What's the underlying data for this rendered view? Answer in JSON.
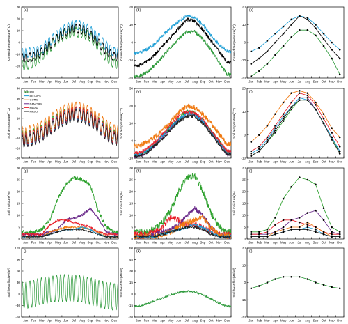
{
  "months": [
    "Jan",
    "Feb",
    "Mar",
    "Apr",
    "May",
    "Jun",
    "Jul",
    "Aug",
    "Sep",
    "Oct",
    "Nov",
    "Dec"
  ],
  "colors": {
    "MU": "#2ca02c",
    "BETOPS": "#1f9fd6",
    "GOMS": "#f07a12",
    "NAMORS": "#6a2a8a",
    "MAQU": "#e8202a",
    "MASO": "#222222",
    "black": "#000000",
    "green": "#2e9a3c",
    "blue": "#1f9fd6"
  },
  "chart_data": [
    {
      "id": "a",
      "panel_label": "(a)",
      "type": "line",
      "ylabel": "Ground temperature(°C)",
      "ylim": [
        -30,
        30
      ],
      "yticks": [
        -30,
        -20,
        -10,
        0,
        10,
        20,
        30
      ],
      "mode": "daily",
      "series": [
        {
          "key": "blue",
          "values": [
            -9,
            -8,
            -6,
            1,
            7,
            12,
            15,
            14,
            10,
            4,
            -3,
            -8
          ],
          "amp": 0.55
        },
        {
          "key": "green",
          "values": [
            -19,
            -17,
            -12,
            -4,
            3,
            7,
            9,
            8,
            5,
            -3,
            -12,
            -18
          ],
          "amp": 0.55
        },
        {
          "key": "black",
          "values": [
            -13,
            -12,
            -8,
            -2,
            4,
            9,
            12,
            11,
            7,
            0,
            -7,
            -12
          ],
          "amp": 0.5
        }
      ]
    },
    {
      "id": "b",
      "panel_label": "(b)",
      "type": "line",
      "ylabel": "Ground temperature(°C)",
      "ylim": [
        -20,
        20
      ],
      "yticks": [
        -20,
        -10,
        0,
        10,
        20
      ],
      "mode": "smooth",
      "series": [
        {
          "key": "blue",
          "values": [
            -6,
            -4,
            -1,
            4,
            8,
            12,
            15,
            14,
            10,
            4,
            -1,
            -5
          ],
          "noise": 1.0
        },
        {
          "key": "black",
          "values": [
            -13,
            -11,
            -7,
            -2,
            3,
            8,
            13,
            12,
            7,
            1,
            -5,
            -11
          ],
          "noise": 1.0
        },
        {
          "key": "green",
          "values": [
            -19,
            -17,
            -13,
            -8,
            -3,
            2,
            6,
            6,
            2,
            -4,
            -11,
            -18
          ],
          "noise": 1.0
        }
      ]
    },
    {
      "id": "c",
      "panel_label": "(c)",
      "type": "line",
      "ylabel": "Ground temperature(°C)",
      "ylim": [
        -20,
        20
      ],
      "yticks": [
        -20,
        -10,
        0,
        10,
        20
      ],
      "mode": "monthly",
      "series": [
        {
          "key": "blue",
          "values": [
            -5,
            -3,
            1,
            5,
            9,
            13,
            15,
            14,
            10,
            5,
            0,
            -4
          ]
        },
        {
          "key": "black",
          "values": [
            -12,
            -9,
            -5,
            0,
            5,
            10,
            15,
            13,
            8,
            2,
            -4,
            -9
          ]
        },
        {
          "key": "green",
          "values": [
            -19,
            -16,
            -12,
            -7,
            -2,
            3,
            7,
            7,
            4,
            -2,
            -9,
            -18
          ]
        }
      ]
    },
    {
      "id": "d",
      "panel_label": "(d)",
      "type": "line",
      "ylabel": "Soil temperature(°C)",
      "ylim": [
        -30,
        40
      ],
      "yticks": [
        -30,
        -20,
        -10,
        0,
        10,
        20,
        30,
        40
      ],
      "mode": "daily",
      "legend": [
        "MU",
        "BETOPS",
        "GOMS",
        "NAMORS",
        "MAQU",
        "MASO"
      ],
      "series": [
        {
          "key": "GOMS",
          "values": [
            -6,
            -4,
            0,
            6,
            12,
            17,
            19,
            18,
            14,
            8,
            1,
            -4
          ],
          "amp": 0.9
        },
        {
          "key": "MU",
          "values": [
            -9,
            -7,
            -3,
            3,
            9,
            13,
            15,
            15,
            11,
            5,
            -2,
            -8
          ],
          "amp": 0.75
        },
        {
          "key": "NAMORS",
          "values": [
            -12,
            -10,
            -6,
            0,
            6,
            11,
            14,
            13,
            9,
            3,
            -5,
            -10
          ],
          "amp": 0.7
        },
        {
          "key": "BETOPS",
          "values": [
            -11,
            -9,
            -5,
            1,
            7,
            12,
            15,
            14,
            10,
            4,
            -4,
            -9
          ],
          "amp": 0.65
        },
        {
          "key": "MAQU",
          "values": [
            -10,
            -8,
            -4,
            2,
            8,
            13,
            16,
            15,
            11,
            5,
            -3,
            -9
          ],
          "amp": 0.7
        },
        {
          "key": "MASO",
          "values": [
            -13,
            -11,
            -7,
            -1,
            5,
            10,
            13,
            12,
            8,
            2,
            -6,
            -11
          ],
          "amp": 0.7
        }
      ]
    },
    {
      "id": "e",
      "panel_label": "(e)",
      "type": "line",
      "ylabel": "Soil temperature(°C)",
      "ylim": [
        -10,
        30
      ],
      "yticks": [
        -10,
        0,
        10,
        20,
        30
      ],
      "mode": "smooth",
      "series": [
        {
          "key": "GOMS",
          "values": [
            -3,
            -1,
            2,
            6,
            11,
            16,
            20,
            19,
            15,
            10,
            4,
            -2
          ],
          "noise": 1.4
        },
        {
          "key": "MU",
          "values": [
            -8,
            -6,
            -2,
            3,
            8,
            13,
            17,
            16,
            12,
            6,
            0,
            -7
          ],
          "noise": 1.0
        },
        {
          "key": "NAMORS",
          "values": [
            -9,
            -7,
            -3,
            2,
            7,
            12,
            16,
            15,
            11,
            5,
            -1,
            -8
          ],
          "noise": 1.0
        },
        {
          "key": "BETOPS",
          "values": [
            -8,
            -6,
            -2,
            3,
            8,
            12,
            16,
            15,
            11,
            5,
            -1,
            -7
          ],
          "noise": 1.0
        },
        {
          "key": "MAQU",
          "values": [
            -7,
            -5,
            -1,
            4,
            9,
            14,
            17,
            16,
            12,
            6,
            0,
            -6
          ],
          "noise": 1.0
        },
        {
          "key": "MASO",
          "values": [
            -9,
            -7,
            -3,
            1,
            6,
            11,
            14,
            14,
            10,
            4,
            -2,
            -8
          ],
          "noise": 1.0
        }
      ]
    },
    {
      "id": "f",
      "panel_label": "(f)",
      "type": "line",
      "ylabel": "Soil temperature(°C)",
      "ylim": [
        -10,
        20
      ],
      "yticks": [
        -10,
        0,
        10,
        20
      ],
      "mode": "monthly",
      "series": [
        {
          "key": "GOMS",
          "values": [
            -3,
            0,
            4,
            9,
            14,
            18,
            19,
            18,
            14,
            9,
            3,
            -1
          ]
        },
        {
          "key": "MAQU",
          "values": [
            -7,
            -5,
            -1,
            4,
            9,
            14,
            18,
            17,
            13,
            7,
            1,
            -5
          ]
        },
        {
          "key": "NAMORS",
          "values": [
            -9,
            -7,
            -3,
            2,
            7,
            12,
            16,
            16,
            11,
            5,
            -1,
            -7
          ]
        },
        {
          "key": "MU",
          "values": [
            -9,
            -7,
            -3,
            1,
            6,
            11,
            15,
            15,
            11,
            5,
            -1,
            -8
          ]
        },
        {
          "key": "BETOPS",
          "values": [
            -8,
            -6,
            -2,
            3,
            8,
            12,
            16,
            15,
            11,
            5,
            -1,
            -7
          ]
        },
        {
          "key": "MASO",
          "values": [
            -9,
            -7,
            -3,
            2,
            7,
            12,
            15,
            15,
            11,
            5,
            -2,
            -8
          ]
        }
      ]
    },
    {
      "id": "g",
      "panel_label": "(g)",
      "type": "line",
      "ylabel": "Soil moisture(%)",
      "ylim": [
        0,
        30
      ],
      "yticks": [
        0,
        5,
        10,
        15,
        20,
        25,
        30
      ],
      "mode": "smooth",
      "series": [
        {
          "key": "MU",
          "values": [
            3,
            3,
            4,
            8,
            17,
            23,
            26,
            25,
            23,
            12,
            5,
            3
          ],
          "noise": 0.8
        },
        {
          "key": "NAMORS",
          "values": [
            2,
            2,
            2,
            3,
            4,
            8,
            9,
            10,
            13,
            9,
            3,
            2
          ],
          "noise": 0.6
        },
        {
          "key": "MAQU",
          "values": [
            2,
            2,
            2,
            6,
            8,
            8,
            7,
            6,
            5,
            3,
            2,
            2
          ],
          "noise": 0.5
        },
        {
          "key": "GOMS",
          "values": [
            1,
            1,
            1,
            3,
            4,
            5,
            5,
            5,
            4,
            3,
            1,
            1
          ],
          "noise": 0.4
        },
        {
          "key": "BETOPS",
          "values": [
            1,
            1,
            1,
            2,
            3,
            4,
            4,
            5,
            4,
            2,
            1,
            1
          ],
          "noise": 0.3
        },
        {
          "key": "MASO",
          "values": [
            1,
            1,
            1,
            2,
            3,
            4,
            4,
            4,
            3,
            2,
            1,
            1
          ],
          "noise": 0.3
        }
      ]
    },
    {
      "id": "h",
      "panel_label": "(h)",
      "type": "line",
      "ylabel": "Soil moisture(%)",
      "ylim": [
        0,
        30
      ],
      "yticks": [
        0,
        5,
        10,
        15,
        20,
        25,
        30
      ],
      "mode": "smooth",
      "series": [
        {
          "key": "MU",
          "values": [
            3,
            3,
            4,
            7,
            12,
            20,
            26,
            27,
            20,
            11,
            5,
            3
          ],
          "noise": 1.4
        },
        {
          "key": "MAQU",
          "values": [
            2,
            2,
            3,
            5,
            9,
            8,
            6,
            6,
            5,
            3,
            2,
            2
          ],
          "noise": 1.2
        },
        {
          "key": "NAMORS",
          "values": [
            1,
            1,
            2,
            3,
            4,
            6,
            10,
            13,
            10,
            5,
            2,
            1
          ],
          "noise": 1.0
        },
        {
          "key": "GOMS",
          "values": [
            1,
            1,
            1,
            2,
            3,
            5,
            7,
            8,
            9,
            5,
            2,
            1
          ],
          "noise": 1.2
        },
        {
          "key": "BETOPS",
          "values": [
            1,
            1,
            1,
            2,
            3,
            4,
            5,
            6,
            5,
            3,
            1,
            1
          ],
          "noise": 0.6
        },
        {
          "key": "MASO",
          "values": [
            1,
            1,
            1,
            2,
            3,
            4,
            5,
            5,
            4,
            2,
            1,
            1
          ],
          "noise": 0.5
        }
      ]
    },
    {
      "id": "i",
      "panel_label": "(i)",
      "type": "line",
      "ylabel": "Soil moisture(%)",
      "ylim": [
        0,
        30
      ],
      "yticks": [
        0,
        5,
        10,
        15,
        20,
        25,
        30
      ],
      "mode": "monthly",
      "series": [
        {
          "key": "MU",
          "values": [
            3,
            3,
            4,
            9,
            17,
            22,
            26,
            25,
            23,
            13,
            5,
            3
          ]
        },
        {
          "key": "NAMORS",
          "values": [
            2,
            2,
            2,
            3,
            5,
            8,
            9,
            11,
            12,
            8,
            3,
            2
          ]
        },
        {
          "key": "MAQU",
          "values": [
            2,
            2,
            3,
            6,
            8,
            8,
            7,
            6,
            5,
            3,
            2,
            2
          ]
        },
        {
          "key": "GOMS",
          "values": [
            1,
            1,
            1,
            3,
            4,
            5,
            5,
            7,
            5,
            3,
            1,
            1
          ]
        },
        {
          "key": "BETOPS",
          "values": [
            1,
            1,
            1,
            2,
            3,
            4,
            4,
            5,
            4,
            2,
            1,
            1
          ]
        },
        {
          "key": "MASO",
          "values": [
            1,
            1,
            1,
            2,
            3,
            4,
            4,
            4,
            3,
            2,
            1,
            1
          ]
        }
      ]
    },
    {
      "id": "j",
      "panel_label": "(j)",
      "type": "line",
      "ylabel": "Soil heat flux(W/m²)",
      "ylim": [
        -60,
        120
      ],
      "yticks": [
        -60,
        -30,
        0,
        30,
        60,
        90,
        120
      ],
      "mode": "daily",
      "series": [
        {
          "key": "green",
          "values": [
            -3,
            2,
            7,
            12,
            15,
            16,
            15,
            13,
            8,
            2,
            -4,
            -7
          ],
          "amp": 1.6
        }
      ]
    },
    {
      "id": "k",
      "panel_label": "(k)",
      "type": "line",
      "ylabel": "Soil heat flux(W/m²)",
      "ylim": [
        -30,
        60
      ],
      "yticks": [
        -30,
        -15,
        0,
        15,
        30,
        45,
        60
      ],
      "mode": "smooth",
      "series": [
        {
          "key": "green",
          "values": [
            -16,
            -13,
            -9,
            -5,
            -1,
            2,
            4,
            3,
            -1,
            -6,
            -12,
            -16
          ],
          "noise": 1.3
        }
      ]
    },
    {
      "id": "l",
      "panel_label": "(l)",
      "type": "line",
      "ylabel": "Soil heat flux(W/m²)",
      "ylim": [
        -30,
        30
      ],
      "yticks": [
        -30,
        -15,
        0,
        15,
        30
      ],
      "mode": "monthly",
      "series": [
        {
          "key": "green",
          "values": [
            -5,
            -3,
            0,
            3,
            5,
            5,
            5,
            3,
            0,
            -2,
            -4,
            -5
          ]
        }
      ]
    }
  ]
}
